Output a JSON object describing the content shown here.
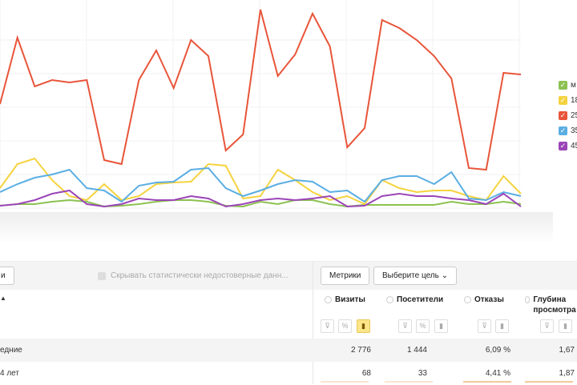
{
  "chart_data": {
    "type": "line",
    "grid": true,
    "legend_placement": "right",
    "series": [
      {
        "name": "м",
        "color": "#8cc152",
        "values": [
          3,
          5,
          5,
          8,
          10,
          8,
          2,
          3,
          5,
          8,
          10,
          10,
          8,
          3,
          2,
          8,
          5,
          10,
          10,
          5,
          2,
          4,
          4,
          4,
          4,
          4,
          8,
          5,
          5,
          8,
          5
        ]
      },
      {
        "name": "18",
        "color": "#f5d33f",
        "values": [
          25,
          55,
          62,
          35,
          15,
          10,
          30,
          10,
          15,
          30,
          32,
          33,
          55,
          53,
          12,
          15,
          48,
          35,
          20,
          10,
          15,
          5,
          35,
          25,
          20,
          22,
          22,
          15,
          10,
          40,
          18
        ]
      },
      {
        "name": "25",
        "color": "#e8553a",
        "values": [
          130,
          213,
          152,
          160,
          157,
          160,
          60,
          55,
          160,
          197,
          150,
          210,
          190,
          72,
          92,
          248,
          165,
          192,
          243,
          202,
          76,
          100,
          235,
          225,
          210,
          190,
          162,
          50,
          48,
          169,
          167
        ]
      },
      {
        "name": "35",
        "color": "#5aaee3",
        "values": [
          20,
          30,
          38,
          42,
          48,
          25,
          22,
          8,
          28,
          32,
          33,
          48,
          50,
          25,
          15,
          22,
          30,
          35,
          33,
          20,
          22,
          8,
          35,
          40,
          40,
          30,
          45,
          12,
          10,
          20,
          15
        ]
      },
      {
        "name": "45",
        "color": "#9b45b8",
        "values": [
          3,
          5,
          10,
          18,
          22,
          5,
          2,
          5,
          12,
          10,
          10,
          15,
          12,
          2,
          5,
          10,
          12,
          10,
          12,
          15,
          2,
          3,
          15,
          18,
          15,
          15,
          12,
          10,
          5,
          18,
          2
        ]
      }
    ]
  },
  "toolbar": {
    "left_button": "и",
    "hide_label": "Скрывать статистически недостоверные данн...",
    "metrics_button": "Метрики",
    "goal_button": "Выберите цель"
  },
  "table": {
    "sort_indicator": "▲",
    "columns": [
      "Визиты",
      "Посетители",
      "Отказы",
      "Глубина просмотра"
    ],
    "rows": [
      {
        "label": "едние",
        "values": [
          "2 776",
          "1 444",
          "6,09 %",
          "1,67"
        ]
      },
      {
        "label": "4 лет",
        "values": [
          "68",
          "33",
          "4,41 %",
          "1,87"
        ]
      }
    ]
  }
}
